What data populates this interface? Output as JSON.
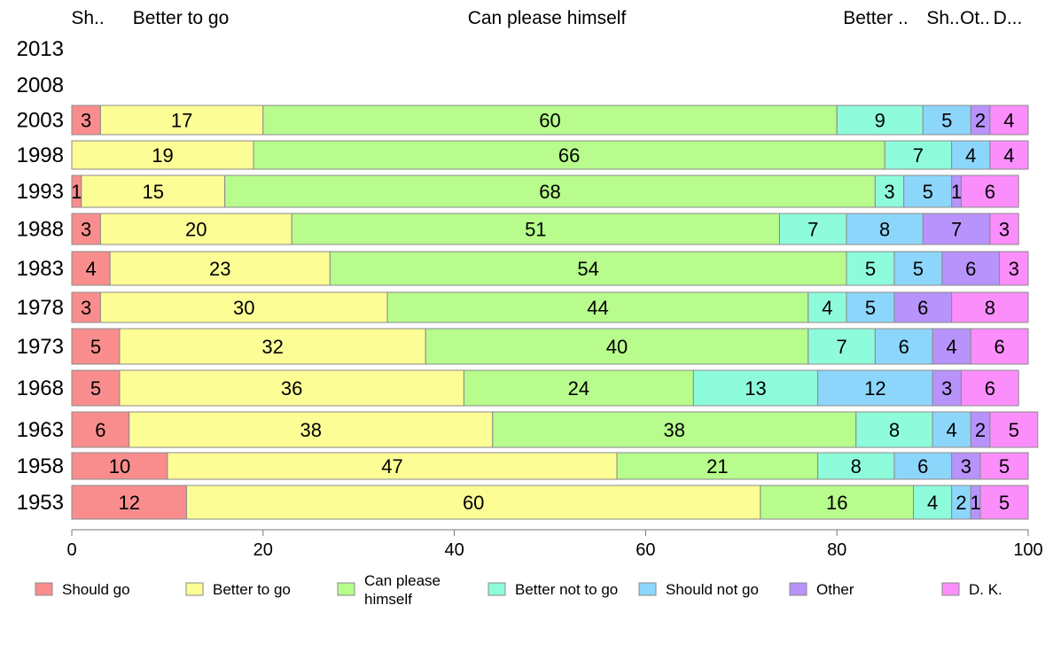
{
  "chart_data": {
    "type": "bar",
    "orientation": "horizontal",
    "stacked": true,
    "title": "",
    "xlabel": "",
    "ylabel": "",
    "xlim": [
      0,
      100
    ],
    "x_ticks": [
      "0",
      "20",
      "40",
      "60",
      "80",
      "100"
    ],
    "categories": [
      "2013",
      "2008",
      "2003",
      "1998",
      "1993",
      "1988",
      "1983",
      "1978",
      "1973",
      "1968",
      "1963",
      "1958",
      "1953"
    ],
    "header_labels": [
      "Sh..",
      "Better to go",
      "Can please himself",
      "Better ..",
      "Sh..",
      "Ot..",
      "D..."
    ],
    "legend_position": "bottom",
    "series": [
      {
        "name": "Should go",
        "color": "#f98d8d",
        "values": [
          null,
          null,
          3,
          0,
          1,
          3,
          4,
          3,
          5,
          5,
          6,
          10,
          12
        ]
      },
      {
        "name": "Better to go",
        "color": "#fdfd96",
        "values": [
          null,
          null,
          17,
          19,
          15,
          20,
          23,
          30,
          32,
          36,
          38,
          47,
          60
        ]
      },
      {
        "name": "Can please himself",
        "color": "#b7fc8c",
        "values": [
          null,
          null,
          60,
          66,
          68,
          51,
          54,
          44,
          40,
          24,
          38,
          21,
          16
        ]
      },
      {
        "name": "Better not to go",
        "color": "#8efcdb",
        "values": [
          null,
          null,
          9,
          7,
          3,
          7,
          5,
          4,
          7,
          13,
          8,
          8,
          4
        ]
      },
      {
        "name": "Should not go",
        "color": "#8dd6fb",
        "values": [
          null,
          null,
          5,
          4,
          5,
          8,
          5,
          5,
          6,
          12,
          4,
          6,
          2
        ]
      },
      {
        "name": "Other",
        "color": "#b793fb",
        "values": [
          null,
          null,
          2,
          0,
          1,
          7,
          6,
          6,
          4,
          3,
          2,
          3,
          1
        ]
      },
      {
        "name": "D. K.",
        "color": "#fb8efb",
        "values": [
          null,
          null,
          4,
          4,
          6,
          3,
          3,
          8,
          6,
          6,
          5,
          5,
          5
        ]
      }
    ],
    "legend_labels": [
      [
        "Should go"
      ],
      [
        "Better to go"
      ],
      [
        "Can please",
        "himself"
      ],
      [
        "Better not to go"
      ],
      [
        "Should not go"
      ],
      [
        "Other"
      ],
      [
        "D. K."
      ]
    ]
  }
}
